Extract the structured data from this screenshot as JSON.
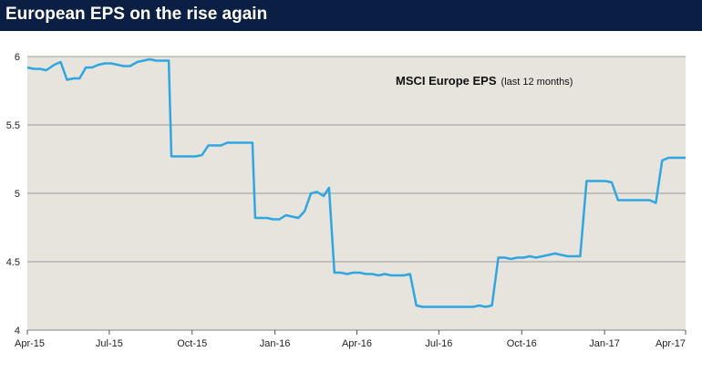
{
  "header": {
    "title": "European EPS on the rise again"
  },
  "colors": {
    "header_bg": "#0b1f44",
    "plot_bg": "#e6e4dd",
    "line": "#2fa6e0",
    "grid": "#9a9a9a"
  },
  "chart_data": {
    "type": "line",
    "title": "",
    "annotation": {
      "main": "MSCI Europe EPS",
      "sub": "(last 12 months)"
    },
    "xlabel": "",
    "ylabel": "",
    "ylim": [
      4,
      6
    ],
    "xlim": [
      "2015-04-01",
      "2017-04-01"
    ],
    "yticks": [
      "4",
      "4.5",
      "5",
      "5.5",
      "6"
    ],
    "xticks": [
      {
        "date": "2015-04-01",
        "label": "Apr-15"
      },
      {
        "date": "2015-07-01",
        "label": "Jul-15"
      },
      {
        "date": "2015-10-01",
        "label": "Oct-15"
      },
      {
        "date": "2016-01-01",
        "label": "Jan-16"
      },
      {
        "date": "2016-04-01",
        "label": "Apr-16"
      },
      {
        "date": "2016-07-01",
        "label": "Jul-16"
      },
      {
        "date": "2016-10-01",
        "label": "Oct-16"
      },
      {
        "date": "2017-01-01",
        "label": "Jan-17"
      },
      {
        "date": "2017-04-01",
        "label": "Apr-17"
      }
    ],
    "grid": true,
    "series": [
      {
        "x": [
          "2015-04-01",
          "2015-04-08",
          "2015-04-15",
          "2015-04-22",
          "2015-05-01",
          "2015-05-08",
          "2015-05-15",
          "2015-05-22",
          "2015-05-29",
          "2015-06-05",
          "2015-06-12",
          "2015-06-19",
          "2015-06-26",
          "2015-07-03",
          "2015-07-10",
          "2015-07-17",
          "2015-07-24",
          "2015-08-01",
          "2015-08-08",
          "2015-08-15",
          "2015-08-22",
          "2015-08-29",
          "2015-09-05",
          "2015-09-08",
          "2015-09-14",
          "2015-09-21",
          "2015-09-28",
          "2015-10-05",
          "2015-10-12",
          "2015-10-19",
          "2015-10-26",
          "2015-11-02",
          "2015-11-09",
          "2015-11-16",
          "2015-11-23",
          "2015-11-30",
          "2015-12-07",
          "2015-12-10",
          "2015-12-16",
          "2015-12-23",
          "2015-12-30",
          "2016-01-06",
          "2016-01-13",
          "2016-01-20",
          "2016-01-27",
          "2016-02-03",
          "2016-02-10",
          "2016-02-17",
          "2016-02-24",
          "2016-03-01",
          "2016-03-07",
          "2016-03-14",
          "2016-03-21",
          "2016-03-28",
          "2016-04-04",
          "2016-04-11",
          "2016-04-18",
          "2016-04-25",
          "2016-05-02",
          "2016-05-09",
          "2016-05-16",
          "2016-05-23",
          "2016-05-30",
          "2016-06-06",
          "2016-06-13",
          "2016-06-20",
          "2016-06-27",
          "2016-07-04",
          "2016-07-11",
          "2016-07-18",
          "2016-07-25",
          "2016-08-01",
          "2016-08-08",
          "2016-08-15",
          "2016-08-22",
          "2016-08-29",
          "2016-09-05",
          "2016-09-12",
          "2016-09-19",
          "2016-09-26",
          "2016-10-03",
          "2016-10-10",
          "2016-10-17",
          "2016-10-24",
          "2016-10-31",
          "2016-11-07",
          "2016-11-14",
          "2016-11-21",
          "2016-11-28",
          "2016-12-05",
          "2016-12-12",
          "2016-12-19",
          "2016-12-26",
          "2017-01-02",
          "2017-01-09",
          "2017-01-16",
          "2017-01-23",
          "2017-01-30",
          "2017-02-06",
          "2017-02-13",
          "2017-02-20",
          "2017-02-27",
          "2017-03-06",
          "2017-03-13",
          "2017-03-20",
          "2017-03-27",
          "2017-04-01"
        ],
        "values": [
          5.92,
          5.91,
          5.91,
          5.9,
          5.94,
          5.96,
          5.83,
          5.84,
          5.84,
          5.92,
          5.92,
          5.94,
          5.95,
          5.95,
          5.94,
          5.93,
          5.93,
          5.96,
          5.97,
          5.98,
          5.97,
          5.97,
          5.97,
          5.27,
          5.27,
          5.27,
          5.27,
          5.27,
          5.28,
          5.35,
          5.35,
          5.35,
          5.37,
          5.37,
          5.37,
          5.37,
          5.37,
          4.82,
          4.82,
          4.82,
          4.81,
          4.81,
          4.84,
          4.83,
          4.82,
          4.87,
          5.0,
          5.01,
          4.98,
          5.04,
          4.42,
          4.42,
          4.41,
          4.42,
          4.42,
          4.41,
          4.41,
          4.4,
          4.41,
          4.4,
          4.4,
          4.4,
          4.41,
          4.18,
          4.17,
          4.17,
          4.17,
          4.17,
          4.17,
          4.17,
          4.17,
          4.17,
          4.17,
          4.18,
          4.17,
          4.18,
          4.53,
          4.53,
          4.52,
          4.53,
          4.53,
          4.54,
          4.53,
          4.54,
          4.55,
          4.56,
          4.55,
          4.54,
          4.54,
          4.54,
          5.09,
          5.09,
          5.09,
          5.09,
          5.08,
          4.95,
          4.95,
          4.95,
          4.95,
          4.95,
          4.95,
          4.93,
          5.24,
          5.26,
          5.26,
          5.26,
          5.26
        ]
      }
    ]
  }
}
